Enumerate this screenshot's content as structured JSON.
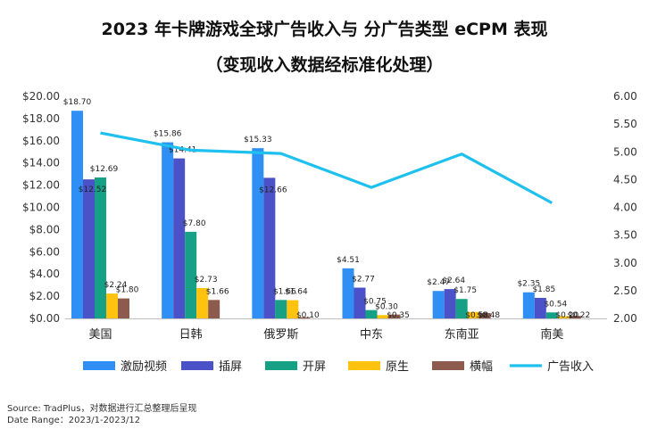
{
  "chart_data": {
    "type": "bar",
    "title": "2023 年卡牌游戏全球广告收入与 分广告类型 eCPM 表现",
    "subtitle": "（变现收入数据经标准化处理）",
    "categories": [
      "美国",
      "日韩",
      "俄罗斯",
      "中东",
      "东南亚",
      "南美"
    ],
    "series": [
      {
        "name": "激励视频",
        "color": "#2f8ff5",
        "values": [
          18.7,
          15.86,
          15.33,
          4.51,
          2.47,
          2.35
        ]
      },
      {
        "name": "插屏",
        "color": "#4b52c8",
        "values": [
          12.52,
          14.41,
          12.66,
          2.77,
          2.64,
          1.85
        ]
      },
      {
        "name": "开屏",
        "color": "#16a085",
        "values": [
          12.69,
          7.8,
          1.66,
          0.75,
          1.75,
          0.54
        ]
      },
      {
        "name": "原生",
        "color": "#ffc20e",
        "values": [
          2.24,
          2.73,
          1.64,
          0.3,
          0.58,
          0.2
        ]
      },
      {
        "name": "横幅",
        "color": "#8d5a4e",
        "values": [
          1.8,
          1.66,
          0.1,
          0.35,
          0.48,
          0.22
        ]
      }
    ],
    "line_series": {
      "name": "广告收入",
      "color": "#1ec0ee",
      "values": [
        5.34,
        5.03,
        4.97,
        4.36,
        4.96,
        4.08
      ]
    },
    "y_left": {
      "min": 0,
      "max": 20,
      "ticks": [
        "$0.00",
        "$2.00",
        "$4.00",
        "$6.00",
        "$8.00",
        "$10.00",
        "$12.00",
        "$14.00",
        "$16.00",
        "$18.00",
        "$20.00"
      ]
    },
    "y_right": {
      "min": 2,
      "max": 6,
      "ticks": [
        "2.00",
        "2.50",
        "3.00",
        "3.50",
        "4.00",
        "4.50",
        "5.00",
        "5.50",
        "6.00"
      ]
    },
    "legend_position": "bottom",
    "grid": false
  },
  "source": {
    "line1": "Source: TradPlus，对数据进行汇总整理后呈现",
    "line2": "Date Range：2023/1-2023/12"
  }
}
